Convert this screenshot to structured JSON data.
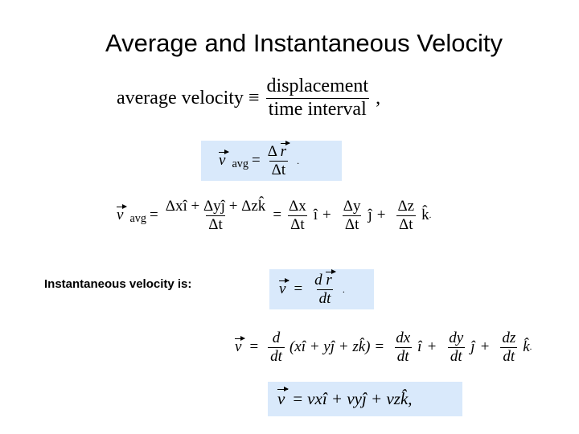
{
  "title": "Average and Instantaneous Velocity",
  "eq1": {
    "lhs": "average velocity ≡",
    "num": "displacement",
    "den": "time interval",
    "end": ","
  },
  "eq2": {
    "v": "v",
    "sub": "avg",
    "eq": "=",
    "num_delta": "Δ",
    "num_r": "r",
    "den": "Δt",
    "end": "."
  },
  "eq3": {
    "v": "v",
    "sub": "avg",
    "eq": "=",
    "num": "Δxî + Δyĵ + Δzk̂",
    "den": "Δt",
    "terms": [
      {
        "num": "Δx",
        "den": "Δt",
        "unit": "î"
      },
      {
        "num": "Δy",
        "den": "Δt",
        "unit": "ĵ"
      },
      {
        "num": "Δz",
        "den": "Δt",
        "unit": "k̂"
      }
    ],
    "plus": "+",
    "end": "."
  },
  "label": "Instantaneous velocity is:",
  "eq4": {
    "v": "v",
    "eq": "=",
    "num_d": "d",
    "num_r": "r",
    "den": "dt",
    "end": "."
  },
  "eq5": {
    "v": "v",
    "eq": "=",
    "op_num": "d",
    "op_den": "dt",
    "paren": "(xî + yĵ + zk̂)",
    "terms": [
      {
        "num": "dx",
        "den": "dt",
        "unit": "î"
      },
      {
        "num": "dy",
        "den": "dt",
        "unit": "ĵ"
      },
      {
        "num": "dz",
        "den": "dt",
        "unit": "k̂"
      }
    ],
    "plus": "+",
    "end": "."
  },
  "eq6": {
    "v": "v",
    "eq": "=",
    "rhs": "vxî + vyĵ + vzk̂,"
  }
}
